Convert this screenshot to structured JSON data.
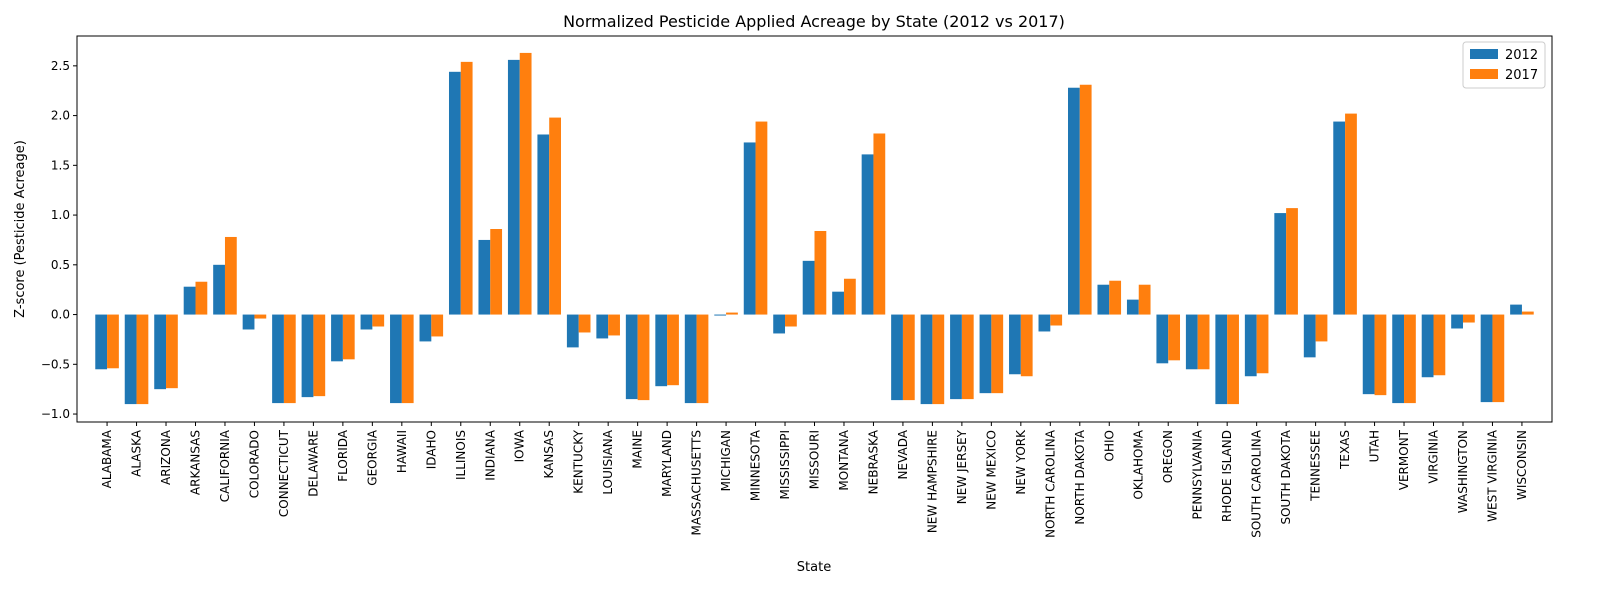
{
  "chart_data": {
    "type": "bar",
    "title": "Normalized Pesticide Applied Acreage by State (2012 vs 2017)",
    "xlabel": "State",
    "ylabel": "Z-score (Pesticide Acreage)",
    "ylim": [
      -1.08,
      2.8
    ],
    "yticks": [
      -1.0,
      -0.5,
      0.0,
      0.5,
      1.0,
      1.5,
      2.0,
      2.5
    ],
    "ytick_labels": [
      "−1.0",
      "−0.5",
      "0.0",
      "0.5",
      "1.0",
      "1.5",
      "2.0",
      "2.5"
    ],
    "grid": false,
    "legend_position": "top-right",
    "categories": [
      "ALABAMA",
      "ALASKA",
      "ARIZONA",
      "ARKANSAS",
      "CALIFORNIA",
      "COLORADO",
      "CONNECTICUT",
      "DELAWARE",
      "FLORIDA",
      "GEORGIA",
      "HAWAII",
      "IDAHO",
      "ILLINOIS",
      "INDIANA",
      "IOWA",
      "KANSAS",
      "KENTUCKY",
      "LOUISIANA",
      "MAINE",
      "MARYLAND",
      "MASSACHUSETTS",
      "MICHIGAN",
      "MINNESOTA",
      "MISSISSIPPI",
      "MISSOURI",
      "MONTANA",
      "NEBRASKA",
      "NEVADA",
      "NEW HAMPSHIRE",
      "NEW JERSEY",
      "NEW MEXICO",
      "NEW YORK",
      "NORTH CAROLINA",
      "NORTH DAKOTA",
      "OHIO",
      "OKLAHOMA",
      "OREGON",
      "PENNSYLVANIA",
      "RHODE ISLAND",
      "SOUTH CAROLINA",
      "SOUTH DAKOTA",
      "TENNESSEE",
      "TEXAS",
      "UTAH",
      "VERMONT",
      "VIRGINIA",
      "WASHINGTON",
      "WEST VIRGINIA",
      "WISCONSIN"
    ],
    "series": [
      {
        "name": "2012",
        "color": "#1f77b4",
        "values": [
          -0.55,
          -0.9,
          -0.75,
          0.28,
          0.5,
          -0.15,
          -0.89,
          -0.83,
          -0.47,
          -0.15,
          -0.89,
          -0.27,
          2.44,
          0.75,
          2.56,
          1.81,
          -0.33,
          -0.24,
          -0.85,
          -0.72,
          -0.89,
          -0.01,
          1.73,
          -0.19,
          0.54,
          0.23,
          1.61,
          -0.86,
          -0.9,
          -0.85,
          -0.79,
          -0.6,
          -0.17,
          2.28,
          0.3,
          0.15,
          -0.49,
          -0.55,
          -0.9,
          -0.62,
          1.02,
          -0.43,
          1.94,
          -0.8,
          -0.89,
          -0.63,
          -0.14,
          -0.88,
          0.1
        ]
      },
      {
        "name": "2017",
        "color": "#ff7f0e",
        "values": [
          -0.54,
          -0.9,
          -0.74,
          0.33,
          0.78,
          -0.04,
          -0.89,
          -0.82,
          -0.45,
          -0.12,
          -0.89,
          -0.22,
          2.54,
          0.86,
          2.63,
          1.98,
          -0.18,
          -0.21,
          -0.86,
          -0.71,
          -0.89,
          0.02,
          1.94,
          -0.12,
          0.84,
          0.36,
          1.82,
          -0.86,
          -0.9,
          -0.85,
          -0.79,
          -0.62,
          -0.11,
          2.31,
          0.34,
          0.3,
          -0.46,
          -0.55,
          -0.9,
          -0.59,
          1.07,
          -0.27,
          2.02,
          -0.81,
          -0.89,
          -0.61,
          -0.08,
          -0.88,
          0.03
        ]
      }
    ]
  }
}
